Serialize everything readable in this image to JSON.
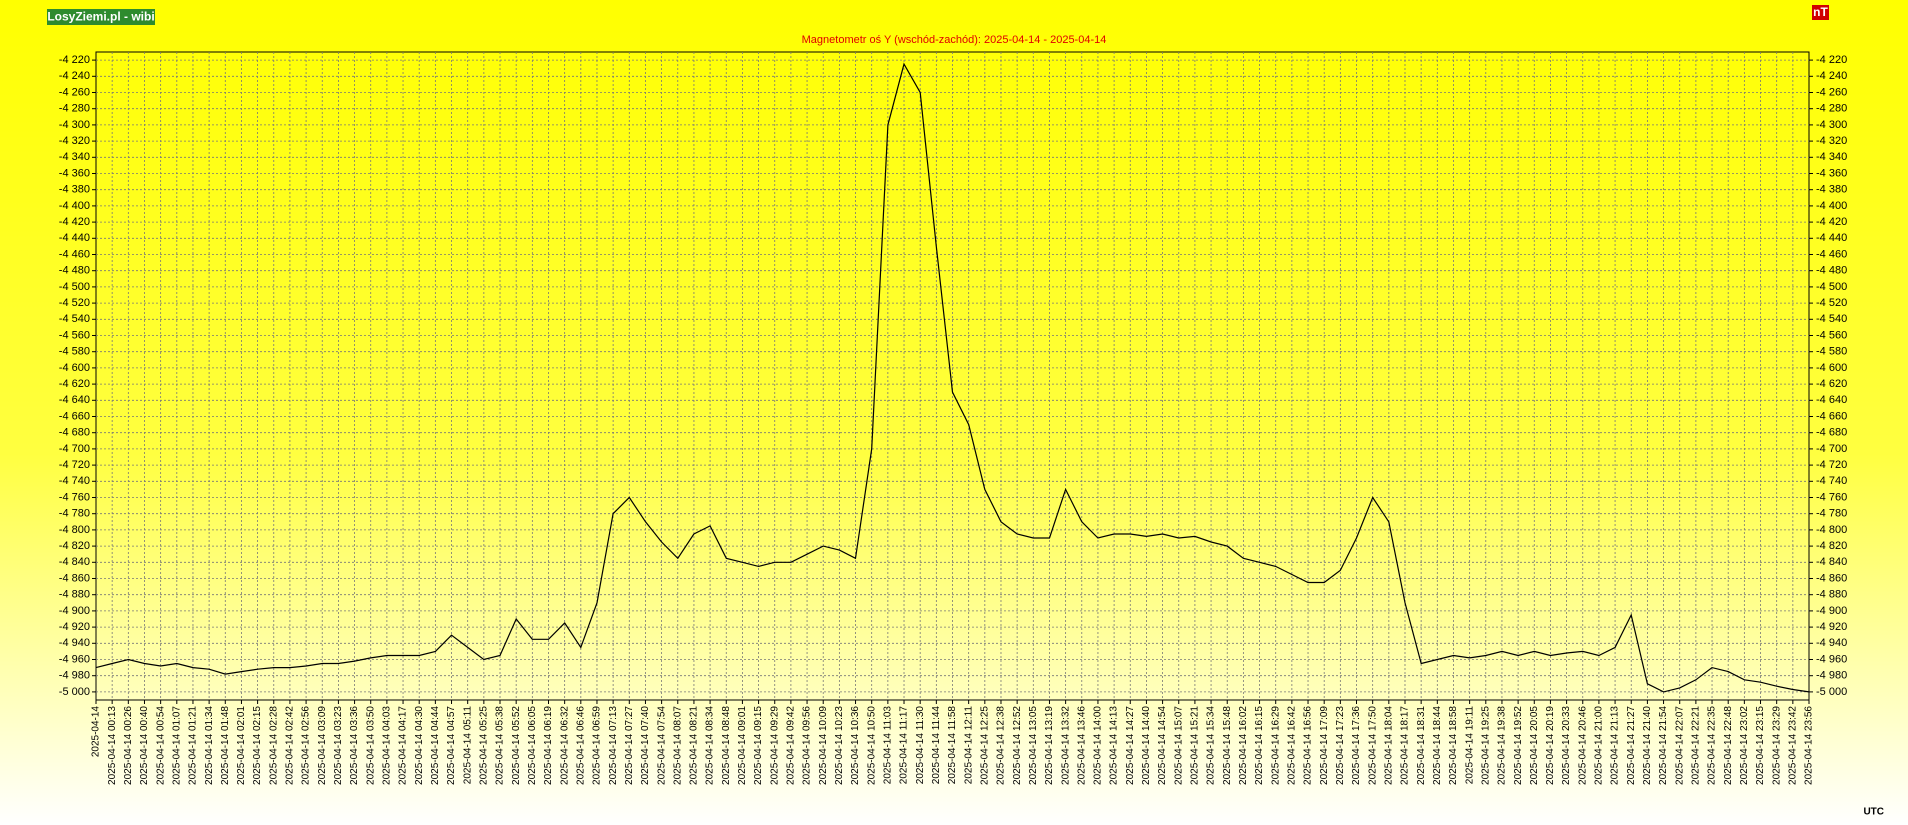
{
  "brand": "LosyZiemi.pl - wibi",
  "unit": "nT",
  "footer": "UTC",
  "chart_data": {
    "type": "line",
    "title": "Magnetometr oś Y (wschód-zachód): 2025-04-14 - 2025-04-14",
    "categories": [
      "2025-04-14",
      "2025-04-14 00:13",
      "2025-04-14 00:26",
      "2025-04-14 00:40",
      "2025-04-14 00:54",
      "2025-04-14 01:07",
      "2025-04-14 01:21",
      "2025-04-14 01:34",
      "2025-04-14 01:48",
      "2025-04-14 02:01",
      "2025-04-14 02:15",
      "2025-04-14 02:28",
      "2025-04-14 02:42",
      "2025-04-14 02:56",
      "2025-04-14 03:09",
      "2025-04-14 03:23",
      "2025-04-14 03:36",
      "2025-04-14 03:50",
      "2025-04-14 04:03",
      "2025-04-14 04:17",
      "2025-04-14 04:30",
      "2025-04-14 04:44",
      "2025-04-14 04:57",
      "2025-04-14 05:11",
      "2025-04-14 05:25",
      "2025-04-14 05:38",
      "2025-04-14 05:52",
      "2025-04-14 06:05",
      "2025-04-14 06:19",
      "2025-04-14 06:32",
      "2025-04-14 06:46",
      "2025-04-14 06:59",
      "2025-04-14 07:13",
      "2025-04-14 07:27",
      "2025-04-14 07:40",
      "2025-04-14 07:54",
      "2025-04-14 08:07",
      "2025-04-14 08:21",
      "2025-04-14 08:34",
      "2025-04-14 08:48",
      "2025-04-14 09:01",
      "2025-04-14 09:15",
      "2025-04-14 09:29",
      "2025-04-14 09:42",
      "2025-04-14 09:56",
      "2025-04-14 10:09",
      "2025-04-14 10:23",
      "2025-04-14 10:36",
      "2025-04-14 10:50",
      "2025-04-14 11:03",
      "2025-04-14 11:17",
      "2025-04-14 11:30",
      "2025-04-14 11:44",
      "2025-04-14 11:58",
      "2025-04-14 12:11",
      "2025-04-14 12:25",
      "2025-04-14 12:38",
      "2025-04-14 12:52",
      "2025-04-14 13:05",
      "2025-04-14 13:19",
      "2025-04-14 13:32",
      "2025-04-14 13:46",
      "2025-04-14 14:00",
      "2025-04-14 14:13",
      "2025-04-14 14:27",
      "2025-04-14 14:40",
      "2025-04-14 14:54",
      "2025-04-14 15:07",
      "2025-04-14 15:21",
      "2025-04-14 15:34",
      "2025-04-14 15:48",
      "2025-04-14 16:02",
      "2025-04-14 16:15",
      "2025-04-14 16:29",
      "2025-04-14 16:42",
      "2025-04-14 16:56",
      "2025-04-14 17:09",
      "2025-04-14 17:23",
      "2025-04-14 17:36",
      "2025-04-14 17:50",
      "2025-04-14 18:04",
      "2025-04-14 18:17",
      "2025-04-14 18:31",
      "2025-04-14 18:44",
      "2025-04-14 18:58",
      "2025-04-14 19:11",
      "2025-04-14 19:25",
      "2025-04-14 19:38",
      "2025-04-14 19:52",
      "2025-04-14 20:05",
      "2025-04-14 20:19",
      "2025-04-14 20:33",
      "2025-04-14 20:46",
      "2025-04-14 21:00",
      "2025-04-14 21:13",
      "2025-04-14 21:27",
      "2025-04-14 21:40",
      "2025-04-14 21:54",
      "2025-04-14 22:07",
      "2025-04-14 22:21",
      "2025-04-14 22:35",
      "2025-04-14 22:48",
      "2025-04-14 23:02",
      "2025-04-14 23:15",
      "2025-04-14 23:29",
      "2025-04-14 23:42",
      "2025-04-14 23:56"
    ],
    "values": [
      -4970,
      -4965,
      -4960,
      -4965,
      -4968,
      -4965,
      -4970,
      -4972,
      -4978,
      -4975,
      -4972,
      -4970,
      -4970,
      -4968,
      -4965,
      -4965,
      -4962,
      -4958,
      -4955,
      -4955,
      -4955,
      -4950,
      -4930,
      -4945,
      -4960,
      -4955,
      -4910,
      -4935,
      -4935,
      -4915,
      -4945,
      -4890,
      -4780,
      -4760,
      -4790,
      -4815,
      -4835,
      -4805,
      -4795,
      -4835,
      -4840,
      -4845,
      -4840,
      -4840,
      -4830,
      -4820,
      -4825,
      -4835,
      -4700,
      -4300,
      -4225,
      -4260,
      -4450,
      -4630,
      -4670,
      -4750,
      -4790,
      -4805,
      -4810,
      -4810,
      -4750,
      -4790,
      -4810,
      -4805,
      -4805,
      -4808,
      -4805,
      -4810,
      -4808,
      -4815,
      -4820,
      -4835,
      -4840,
      -4845,
      -4855,
      -4865,
      -4865,
      -4850,
      -4810,
      -4760,
      -4790,
      -4890,
      -4965,
      -4960,
      -4955,
      -4958,
      -4955,
      -4950,
      -4955,
      -4950,
      -4955,
      -4952,
      -4950,
      -4955,
      -4945,
      -4905,
      -4990,
      -5000,
      -4995,
      -4985,
      -4970,
      -4975,
      -4985,
      -4988,
      -4993,
      -4997,
      -5000
    ],
    "color": "#000000",
    "grid": true,
    "ylim": [
      -5010,
      -4210
    ],
    "yticks": [
      {
        "value": -4220,
        "label": "-4 220"
      },
      {
        "value": -4240,
        "label": "-4 240"
      },
      {
        "value": -4260,
        "label": "-4 260"
      },
      {
        "value": -4280,
        "label": "-4 280"
      },
      {
        "value": -4300,
        "label": "-4 300"
      },
      {
        "value": -4320,
        "label": "-4 320"
      },
      {
        "value": -4340,
        "label": "-4 340"
      },
      {
        "value": -4360,
        "label": "-4 360"
      },
      {
        "value": -4380,
        "label": "-4 380"
      },
      {
        "value": -4400,
        "label": "-4 400"
      },
      {
        "value": -4420,
        "label": "-4 420"
      },
      {
        "value": -4440,
        "label": "-4 440"
      },
      {
        "value": -4460,
        "label": "-4 460"
      },
      {
        "value": -4480,
        "label": "-4 480"
      },
      {
        "value": -4500,
        "label": "-4 500"
      },
      {
        "value": -4520,
        "label": "-4 520"
      },
      {
        "value": -4540,
        "label": "-4 540"
      },
      {
        "value": -4560,
        "label": "-4 560"
      },
      {
        "value": -4580,
        "label": "-4 580"
      },
      {
        "value": -4600,
        "label": "-4 600"
      },
      {
        "value": -4620,
        "label": "-4 620"
      },
      {
        "value": -4640,
        "label": "-4 640"
      },
      {
        "value": -4660,
        "label": "-4 660"
      },
      {
        "value": -4680,
        "label": "-4 680"
      },
      {
        "value": -4700,
        "label": "-4 700"
      },
      {
        "value": -4720,
        "label": "-4 720"
      },
      {
        "value": -4740,
        "label": "-4 740"
      },
      {
        "value": -4760,
        "label": "-4 760"
      },
      {
        "value": -4780,
        "label": "-4 780"
      },
      {
        "value": -4800,
        "label": "-4 800"
      },
      {
        "value": -4820,
        "label": "-4 820"
      },
      {
        "value": -4840,
        "label": "-4 840"
      },
      {
        "value": -4860,
        "label": "-4 860"
      },
      {
        "value": -4880,
        "label": "-4 880"
      },
      {
        "value": -4900,
        "label": "-4 900"
      },
      {
        "value": -4920,
        "label": "-4 920"
      },
      {
        "value": -4940,
        "label": "-4 940"
      },
      {
        "value": -4960,
        "label": "-4 960"
      },
      {
        "value": -4980,
        "label": "-4 980"
      },
      {
        "value": -5000,
        "label": "-5 000"
      }
    ]
  }
}
